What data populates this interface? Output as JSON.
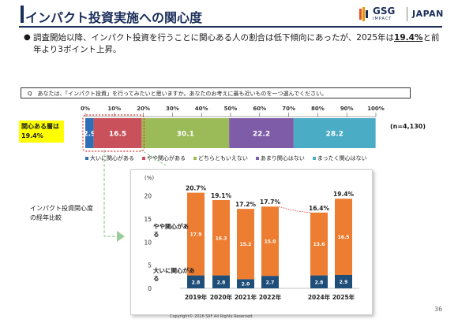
{
  "header": {
    "title": "インパクト投資実施への関心度",
    "logo": {
      "brand": "GSG",
      "sub": "IMPACT",
      "country": "JAPAN"
    }
  },
  "summary": {
    "text_before": "調査開始以降、インパクト投資を行うことに関心ある人の割合は低下傾向にあったが、2025年は",
    "emphasis": "19.4%",
    "text_after": "と前年より3ポイント上昇。"
  },
  "question": "Q　あなたは、「インパクト投資」を行ってみたいと思いますか。あなたのお考えに最も近いものを一つ選んでください。",
  "highlight_label": "関心ある層は19.4%",
  "trend_title": "インパクト投資関心度の経年比較",
  "footer": {
    "copyright": "Copyright© 2026 SIIF All Rights Reserved.",
    "page": "36"
  },
  "chart_data": [
    {
      "type": "bar",
      "orientation": "horizontal-stacked",
      "categories": [
        "大いに関心がある",
        "やや関心がある",
        "どちらともいえない",
        "あまり関心はない",
        "まったく関心はない"
      ],
      "values": [
        2.9,
        16.5,
        30.1,
        22.2,
        28.2
      ],
      "value_labels": [
        "2.9",
        "16.5",
        "30.1",
        "22.2",
        "28.2"
      ],
      "colors": [
        "#2f6fb5",
        "#c8515b",
        "#9bbb59",
        "#7e5ca8",
        "#4bacc6"
      ],
      "x_ticks": [
        "0%",
        "10%",
        "20%",
        "30%",
        "40%",
        "50%",
        "60%",
        "70%",
        "80%",
        "90%",
        "100%"
      ],
      "xlim": [
        0,
        100
      ],
      "annotation": "(n=4,130)",
      "legend_position": "bottom"
    },
    {
      "type": "bar",
      "orientation": "vertical-stacked",
      "categories": [
        "2019年",
        "2020年",
        "2021年",
        "2022年",
        "2024年",
        "2025年"
      ],
      "series": [
        {
          "name": "大いに関心がある",
          "values": [
            2.8,
            2.8,
            2.0,
            2.7,
            2.8,
            2.9
          ],
          "labels": [
            "2.8",
            "2.8",
            "2.0",
            "2.7",
            "2.8",
            "2.9"
          ],
          "color": "#1f4e79"
        },
        {
          "name": "やや関心がある",
          "values": [
            17.9,
            16.3,
            15.2,
            15.0,
            13.6,
            16.5
          ],
          "labels": [
            "17.9",
            "16.3",
            "15.2",
            "15.0",
            "13.6",
            "16.5"
          ],
          "color": "#ed7d31"
        }
      ],
      "series_labels": [
        "やや関心があ る",
        "大いに関心があ る"
      ],
      "totals": [
        "20.7%",
        "19.1%",
        "17.2%",
        "17.7%",
        "16.4%",
        "19.4%"
      ],
      "total_values": [
        20.7,
        19.1,
        17.2,
        17.7,
        16.4,
        19.4
      ],
      "y_unit": "(%)",
      "y_ticks": [
        "0",
        "5",
        "10",
        "15",
        "20"
      ],
      "ylim": [
        0,
        22
      ]
    }
  ]
}
